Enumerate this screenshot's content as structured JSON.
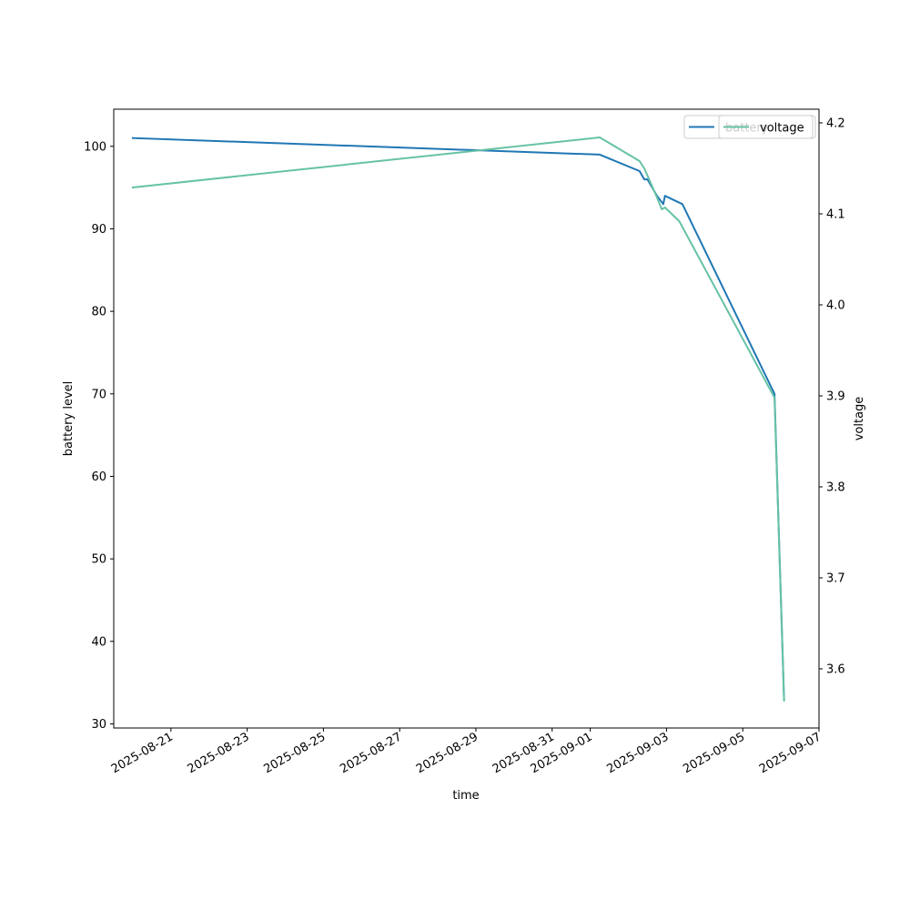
{
  "chart_data": {
    "type": "line",
    "xlabel": "time",
    "ylabel_left": "battery level",
    "ylabel_right": "voltage",
    "x_ticks": [
      "2025-08-21",
      "2025-08-23",
      "2025-08-25",
      "2025-08-27",
      "2025-08-29",
      "2025-08-31",
      "2025-09-01",
      "2025-09-03",
      "2025-09-05",
      "2025-09-07"
    ],
    "y_left_ticks": [
      30,
      40,
      50,
      60,
      70,
      80,
      90,
      100
    ],
    "y_right_ticks": [
      3.6,
      3.7,
      3.8,
      3.9,
      4.0,
      4.1,
      4.2
    ],
    "ylim_left": [
      29.5,
      104.5
    ],
    "ylim_right": [
      3.535,
      4.215
    ],
    "xlim": [
      "2025-08-19T12:00",
      "2025-09-07T00:00"
    ],
    "legend_position": "upper right",
    "series": [
      {
        "name": "battery",
        "axis": "left",
        "color": "#1f77b4",
        "points": [
          [
            "2025-08-20T00:00",
            101
          ],
          [
            "2025-09-01T06:00",
            99
          ],
          [
            "2025-09-02T07:00",
            97
          ],
          [
            "2025-09-02T10:00",
            96
          ],
          [
            "2025-09-02T12:00",
            96
          ],
          [
            "2025-09-02T18:00",
            94
          ],
          [
            "2025-09-02T22:00",
            93
          ],
          [
            "2025-09-02T23:00",
            94
          ],
          [
            "2025-09-03T10:00",
            93
          ],
          [
            "2025-09-05T20:00",
            70
          ],
          [
            "2025-09-06T02:00",
            33
          ]
        ]
      },
      {
        "name": "voltage",
        "axis": "right",
        "color": "#66c2a5",
        "points": [
          [
            "2025-08-20T00:00",
            4.129
          ],
          [
            "2025-09-01T06:00",
            4.184
          ],
          [
            "2025-09-02T07:00",
            4.158
          ],
          [
            "2025-09-02T10:00",
            4.15
          ],
          [
            "2025-09-02T18:00",
            4.118
          ],
          [
            "2025-09-02T21:00",
            4.105
          ],
          [
            "2025-09-02T23:00",
            4.107
          ],
          [
            "2025-09-03T08:00",
            4.092
          ],
          [
            "2025-09-05T20:00",
            3.898
          ],
          [
            "2025-09-06T02:00",
            3.565
          ]
        ]
      }
    ],
    "legends": [
      {
        "entries": [
          "battery"
        ]
      },
      {
        "entries": [
          "voltage"
        ]
      }
    ]
  }
}
